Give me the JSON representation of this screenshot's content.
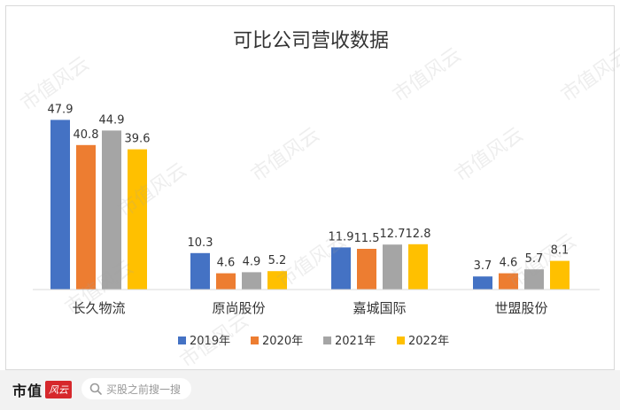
{
  "chart_data": {
    "type": "bar",
    "title": "可比公司营收数据",
    "categories": [
      "长久物流",
      "原尚股份",
      "嘉城国际",
      "世盟股份"
    ],
    "series": [
      {
        "name": "2019年",
        "color": "#4472c4",
        "values": [
          47.9,
          10.3,
          11.9,
          3.7
        ]
      },
      {
        "name": "2020年",
        "color": "#ed7d31",
        "values": [
          40.8,
          4.6,
          11.5,
          4.6
        ]
      },
      {
        "name": "2021年",
        "color": "#a5a5a5",
        "values": [
          44.9,
          4.9,
          12.7,
          5.7
        ]
      },
      {
        "name": "2022年",
        "color": "#ffc000",
        "values": [
          39.6,
          5.2,
          12.8,
          8.1
        ]
      }
    ],
    "ylim": [
      0,
      50
    ],
    "grid": false,
    "legend": "bottom"
  },
  "watermark": "市值风云",
  "footer": {
    "brand_text": "市值",
    "brand_mark": "风云",
    "search_placeholder": "买股之前搜一搜",
    "search_icon": "search-icon"
  }
}
